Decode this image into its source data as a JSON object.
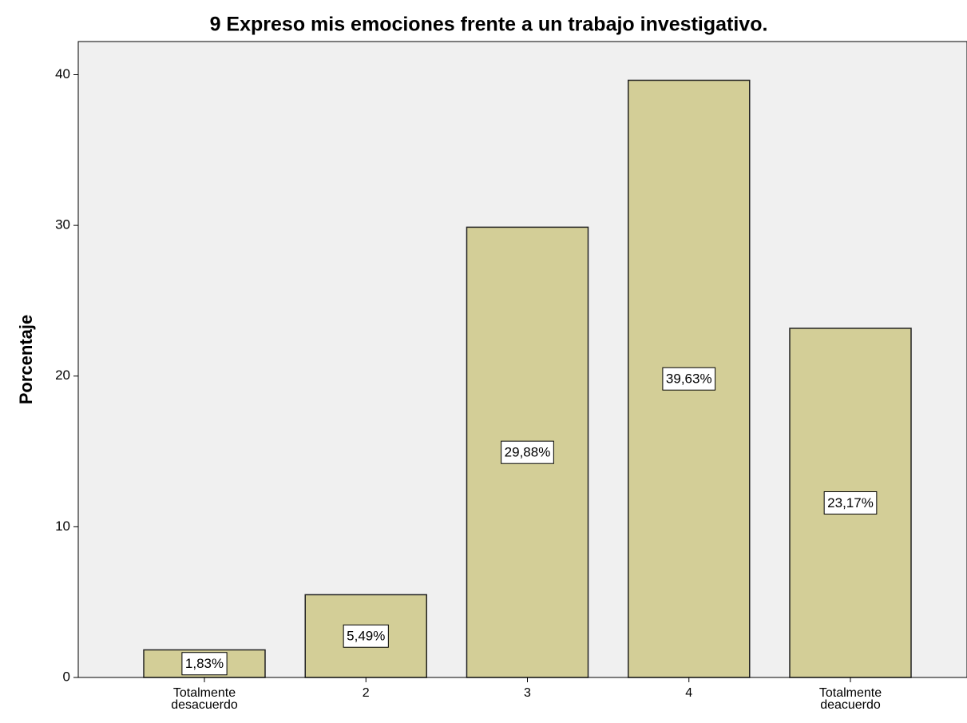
{
  "chart_data": {
    "type": "bar",
    "title": "9 Expreso mis emociones frente a un trabajo investigativo.",
    "y_label": "Porcentaje",
    "categories": [
      "Totalmente desacuerdo",
      "2",
      "3",
      "4",
      "Totalmente deacuerdo"
    ],
    "values": [
      1.83,
      5.49,
      29.88,
      39.63,
      23.17
    ],
    "value_labels": [
      "1,83%",
      "5,49%",
      "29,88%",
      "39,63%",
      "23,17%"
    ],
    "color": "#d3ce97",
    "ylim": [
      0,
      42.2
    ],
    "yticks": [
      0,
      10,
      20,
      30,
      40
    ],
    "grid": false
  }
}
